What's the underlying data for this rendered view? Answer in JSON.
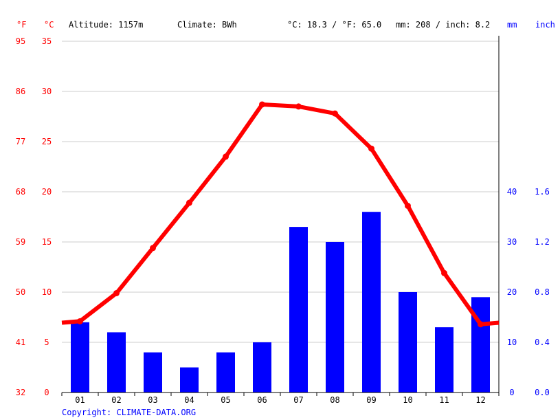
{
  "header": {
    "unit_f": "°F",
    "unit_c": "°C",
    "altitude": "Altitude: 1157m",
    "climate": "Climate: BWh",
    "avg_temp": "°C: 18.3 / °F: 65.0",
    "precip_total": "mm: 208 / inch: 8.2",
    "unit_mm": "mm",
    "unit_inch": "inch"
  },
  "footer": {
    "copyright": "Copyright: CLIMATE-DATA.ORG"
  },
  "colors": {
    "temperature": "#ff0000",
    "precipitation": "#0000ff",
    "grid": "#cccccc"
  },
  "chart_data": {
    "type": "bar",
    "categories": [
      "01",
      "02",
      "03",
      "04",
      "05",
      "06",
      "07",
      "08",
      "09",
      "10",
      "11",
      "12"
    ],
    "series": [
      {
        "type": "bar",
        "axis": "precipitation",
        "values": [
          14,
          12,
          8,
          5,
          8,
          10,
          33,
          30,
          36,
          20,
          13,
          19
        ]
      },
      {
        "type": "line",
        "axis": "temperature",
        "values": [
          7.1,
          9.9,
          14.4,
          18.9,
          23.5,
          28.7,
          28.5,
          27.8,
          24.3,
          18.6,
          11.9,
          6.8
        ]
      }
    ],
    "y_left_celsius": {
      "ticks": [
        "35",
        "30",
        "25",
        "20",
        "15",
        "10",
        "5",
        "0"
      ],
      "ylim": [
        0,
        35
      ]
    },
    "y_left_fahrenheit": {
      "ticks": [
        "95",
        "86",
        "77",
        "68",
        "59",
        "50",
        "41",
        "32"
      ]
    },
    "y_right_mm": {
      "ticks": [
        "40",
        "30",
        "20",
        "10",
        "0"
      ],
      "ylim": [
        0,
        70
      ]
    },
    "y_right_inch": {
      "ticks": [
        "1.6",
        "1.2",
        "0.8",
        "0.4",
        "0.0"
      ]
    },
    "grid": true
  }
}
